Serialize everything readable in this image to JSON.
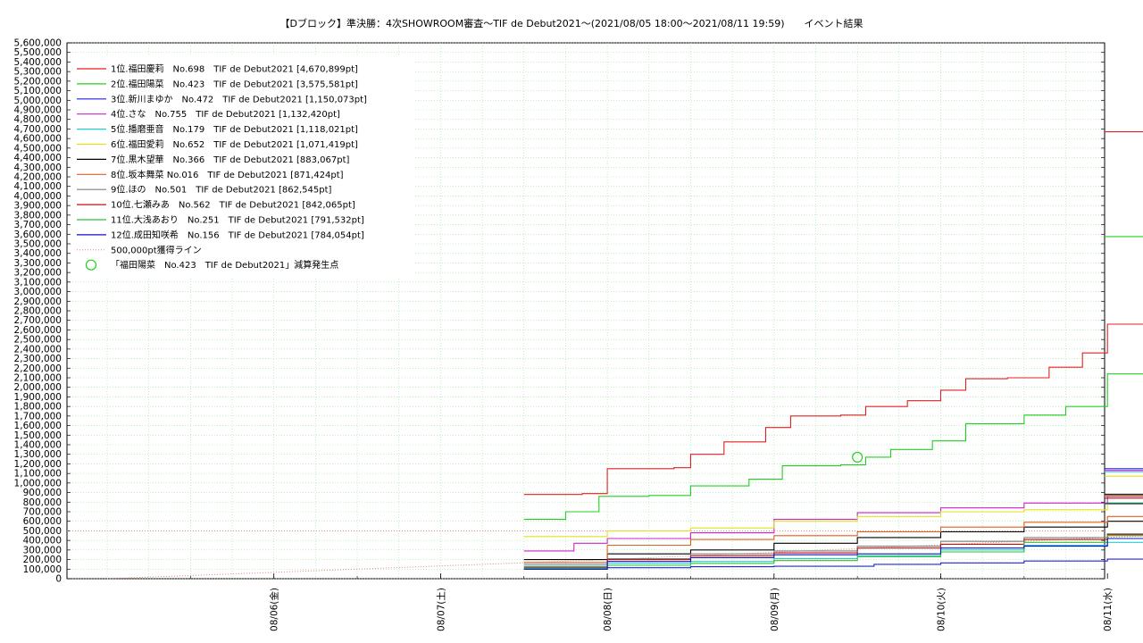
{
  "chart_data": {
    "type": "line",
    "title": "【Dブロック】準決勝：4次SHOWROOM審査〜TIF de Debut2021〜(2021/08/05 18:00〜2021/08/11 19:59)　　イベント結果",
    "ylim": [
      0,
      5600000
    ],
    "yticks": [
      "0",
      "100,000",
      "200,000",
      "300,000",
      "400,000",
      "500,000",
      "600,000",
      "700,000",
      "800,000",
      "900,000",
      "1,000,000",
      "1,100,000",
      "1,200,000",
      "1,300,000",
      "1,400,000",
      "1,500,000",
      "1,600,000",
      "1,700,000",
      "1,800,000",
      "1,900,000",
      "2,000,000",
      "2,100,000",
      "2,200,000",
      "2,300,000",
      "2,400,000",
      "2,500,000",
      "2,600,000",
      "2,700,000",
      "2,800,000",
      "2,900,000",
      "3,000,000",
      "3,100,000",
      "3,200,000",
      "3,300,000",
      "3,400,000",
      "3,500,000",
      "3,600,000",
      "3,700,000",
      "3,800,000",
      "3,900,000",
      "4,000,000",
      "4,100,000",
      "4,200,000",
      "4,300,000",
      "4,400,000",
      "4,500,000",
      "4,600,000",
      "4,700,000",
      "4,800,000",
      "4,900,000",
      "5,000,000",
      "5,100,000",
      "5,200,000",
      "5,300,000",
      "5,400,000",
      "5,500,000",
      "5,600,000"
    ],
    "xticks": [
      {
        "label": "08/06(金)",
        "day": 1
      },
      {
        "label": "08/07(土)",
        "day": 2
      },
      {
        "label": "08/08(日)",
        "day": 3
      },
      {
        "label": "08/09(月)",
        "day": 4
      },
      {
        "label": "08/10(火)",
        "day": 5
      },
      {
        "label": "08/11(水)",
        "day": 6
      }
    ],
    "grid": true,
    "legend_position": "top-left",
    "series": [
      {
        "name": "1位.福田慶莉　No.698　TIF de Debut2021 [4,670,899pt]",
        "color": "#e02020",
        "points": [
          [
            2.5,
            880000
          ],
          [
            2.85,
            890000
          ],
          [
            3.0,
            1150000
          ],
          [
            3.4,
            1160000
          ],
          [
            3.5,
            1300000
          ],
          [
            3.7,
            1430000
          ],
          [
            3.95,
            1580000
          ],
          [
            4.1,
            1700000
          ],
          [
            4.4,
            1710000
          ],
          [
            4.55,
            1800000
          ],
          [
            4.8,
            1860000
          ],
          [
            5.0,
            1970000
          ],
          [
            5.15,
            2090000
          ],
          [
            5.4,
            2100000
          ],
          [
            5.65,
            2210000
          ],
          [
            5.85,
            2360000
          ],
          [
            6.0,
            2660000
          ],
          [
            6.3,
            2670000
          ],
          [
            6.55,
            2840000
          ],
          [
            6.8,
            2890000
          ],
          [
            6.85,
            4670899
          ]
        ]
      },
      {
        "name": "2位.福田陽菜　No.423　TIF de Debut2021 [3,575,581pt]",
        "color": "#20d020",
        "points": [
          [
            2.5,
            620000
          ],
          [
            2.75,
            700000
          ],
          [
            2.95,
            860000
          ],
          [
            3.25,
            870000
          ],
          [
            3.5,
            970000
          ],
          [
            3.85,
            1040000
          ],
          [
            4.05,
            1180000
          ],
          [
            4.4,
            1190000
          ],
          [
            4.55,
            1270000
          ],
          [
            4.7,
            1350000
          ],
          [
            4.95,
            1440000
          ],
          [
            5.15,
            1620000
          ],
          [
            5.5,
            1710000
          ],
          [
            5.75,
            1800000
          ],
          [
            6.0,
            1880000
          ],
          [
            6.0,
            2140000
          ],
          [
            6.4,
            2220000
          ],
          [
            6.65,
            2370000
          ],
          [
            6.8,
            2500000
          ],
          [
            6.85,
            3575581
          ]
        ]
      },
      {
        "name": "3位.新川まゆか　No.472　TIF de Debut2021 [1,150,073pt]",
        "color": "#2020e0",
        "points": [
          [
            2.5,
            100000
          ],
          [
            3.0,
            115000
          ],
          [
            3.5,
            125000
          ],
          [
            4.0,
            130000
          ],
          [
            4.6,
            150000
          ],
          [
            5.0,
            165000
          ],
          [
            5.5,
            185000
          ],
          [
            6.0,
            205000
          ],
          [
            6.5,
            220000
          ],
          [
            6.8,
            230000
          ],
          [
            6.85,
            1150073
          ]
        ]
      },
      {
        "name": "4位.さな　No.755　TIF de Debut2021 [1,132,420pt]",
        "color": "#d020d0",
        "points": [
          [
            2.5,
            290000
          ],
          [
            2.8,
            370000
          ],
          [
            3.0,
            420000
          ],
          [
            3.5,
            480000
          ],
          [
            4.0,
            620000
          ],
          [
            4.5,
            690000
          ],
          [
            5.0,
            740000
          ],
          [
            5.5,
            790000
          ],
          [
            6.0,
            860000
          ],
          [
            6.5,
            940000
          ],
          [
            6.8,
            960000
          ],
          [
            6.85,
            1132420
          ]
        ]
      },
      {
        "name": "5位.播磨亜音　No.179　TIF de Debut2021 [1,118,021pt]",
        "color": "#20d0d0",
        "points": [
          [
            2.5,
            130000
          ],
          [
            3.0,
            160000
          ],
          [
            3.5,
            180000
          ],
          [
            4.0,
            210000
          ],
          [
            4.5,
            240000
          ],
          [
            5.0,
            300000
          ],
          [
            5.5,
            350000
          ],
          [
            6.0,
            380000
          ],
          [
            6.5,
            450000
          ],
          [
            6.85,
            1118021
          ]
        ]
      },
      {
        "name": "6位.福田愛莉　No.652　TIF de Debut2021 [1,071,419pt]",
        "color": "#e0e020",
        "points": [
          [
            2.5,
            440000
          ],
          [
            3.0,
            500000
          ],
          [
            3.5,
            530000
          ],
          [
            4.0,
            600000
          ],
          [
            4.5,
            650000
          ],
          [
            5.0,
            700000
          ],
          [
            5.5,
            720000
          ],
          [
            6.0,
            780000
          ],
          [
            6.5,
            880000
          ],
          [
            6.85,
            1071419
          ]
        ]
      },
      {
        "name": "7位.黒木望華　No.366　TIF de Debut2021 [883,067pt]",
        "color": "#000000",
        "points": [
          [
            2.5,
            200000
          ],
          [
            3.0,
            260000
          ],
          [
            3.5,
            300000
          ],
          [
            4.0,
            370000
          ],
          [
            4.5,
            430000
          ],
          [
            5.0,
            490000
          ],
          [
            5.5,
            540000
          ],
          [
            6.0,
            600000
          ],
          [
            6.5,
            660000
          ],
          [
            6.85,
            883067
          ]
        ]
      },
      {
        "name": "8位.坂本舞菜 No.016　TIF de Debut2021 [871,424pt]",
        "color": "#e06020",
        "points": [
          [
            2.5,
            170000
          ],
          [
            3.0,
            350000
          ],
          [
            3.5,
            410000
          ],
          [
            4.0,
            450000
          ],
          [
            4.5,
            490000
          ],
          [
            5.0,
            540000
          ],
          [
            5.5,
            590000
          ],
          [
            6.0,
            650000
          ],
          [
            6.5,
            720000
          ],
          [
            6.85,
            871424
          ]
        ]
      },
      {
        "name": "9位.ほの　No.501　TIF de Debut2021 [862,545pt]",
        "color": "#808080",
        "points": [
          [
            2.5,
            150000
          ],
          [
            3.0,
            210000
          ],
          [
            3.5,
            260000
          ],
          [
            4.0,
            290000
          ],
          [
            4.5,
            340000
          ],
          [
            5.0,
            390000
          ],
          [
            5.5,
            430000
          ],
          [
            6.0,
            470000
          ],
          [
            6.5,
            530000
          ],
          [
            6.85,
            862545
          ]
        ]
      },
      {
        "name": "10位.七瀬みあ　No.562　TIF de Debut2021 [842,065pt]",
        "color": "#c01010",
        "points": [
          [
            2.5,
            120000
          ],
          [
            3.0,
            200000
          ],
          [
            3.5,
            240000
          ],
          [
            4.0,
            270000
          ],
          [
            4.5,
            320000
          ],
          [
            5.0,
            360000
          ],
          [
            5.5,
            410000
          ],
          [
            6.0,
            460000
          ],
          [
            6.5,
            510000
          ],
          [
            6.85,
            842065
          ]
        ]
      },
      {
        "name": "11位.大浅あおり　No.251　TIF de Debut2021 [791,532pt]",
        "color": "#30c030",
        "points": [
          [
            2.5,
            110000
          ],
          [
            3.0,
            140000
          ],
          [
            3.5,
            160000
          ],
          [
            4.0,
            190000
          ],
          [
            4.5,
            230000
          ],
          [
            5.0,
            280000
          ],
          [
            5.5,
            380000
          ],
          [
            6.0,
            450000
          ],
          [
            6.5,
            500000
          ],
          [
            6.85,
            791532
          ]
        ]
      },
      {
        "name": "12位.成田知咲希　No.156　TIF de Debut2021 [784,054pt]",
        "color": "#1010c0",
        "points": [
          [
            2.5,
            100000
          ],
          [
            3.0,
            180000
          ],
          [
            3.5,
            220000
          ],
          [
            4.0,
            250000
          ],
          [
            4.5,
            260000
          ],
          [
            5.0,
            320000
          ],
          [
            5.5,
            340000
          ],
          [
            6.0,
            420000
          ],
          [
            6.5,
            460000
          ],
          [
            6.85,
            784054
          ]
        ]
      }
    ],
    "reference_line": {
      "label": "500,000pt獲得ライン",
      "color": "#e08080",
      "points": [
        [
          0,
          0
        ],
        [
          3,
          200000
        ],
        [
          6.9,
          500000
        ]
      ],
      "dashed": true
    },
    "marker": {
      "label": "「福田陽菜　No.423　TIF de Debut2021」減算発生点",
      "color": "#20d020",
      "x": 4.5,
      "y": 1270000
    }
  }
}
